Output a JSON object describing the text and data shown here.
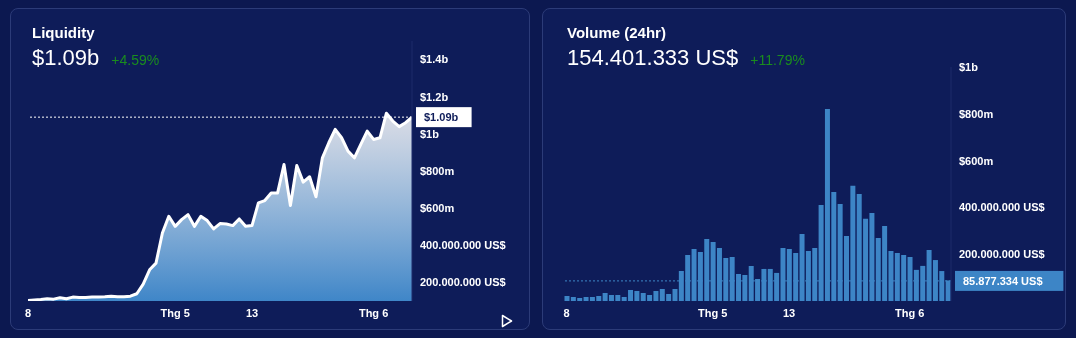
{
  "chart_data": [
    {
      "type": "area",
      "title": "Liquidity",
      "subtitle": "$1.09b",
      "annotations": [
        "+4.59%"
      ],
      "categories": [
        "8",
        null,
        null,
        null,
        null,
        null,
        null,
        null,
        null,
        null,
        null,
        null,
        null,
        null,
        null,
        null,
        null,
        null,
        null,
        null,
        null,
        null,
        null,
        "Thg 5",
        null,
        null,
        null,
        null,
        null,
        null,
        null,
        null,
        null,
        null,
        null,
        "13",
        null,
        null,
        null,
        null,
        null,
        null,
        null,
        null,
        null,
        null,
        null,
        null,
        null,
        null,
        null,
        null,
        null,
        null,
        "Thg 6",
        null,
        null,
        null,
        null,
        null,
        null
      ],
      "series": [
        {
          "color": "#ffffff",
          "values": [
            103000000,
            106000000,
            108000000,
            112000000,
            110000000,
            117000000,
            112000000,
            121000000,
            119000000,
            119000000,
            121000000,
            121000000,
            123000000,
            126000000,
            123000000,
            123000000,
            126000000,
            139000000,
            191000000,
            268000000,
            304000000,
            466000000,
            556000000,
            502000000,
            538000000,
            565000000,
            502000000,
            556000000,
            533000000,
            488000000,
            517000000,
            515000000,
            506000000,
            542000000,
            502000000,
            506000000,
            628000000,
            641000000,
            682000000,
            682000000,
            835000000,
            614000000,
            830000000,
            740000000,
            769000000,
            661000000,
            871000000,
            952000000,
            1024000000,
            979000000,
            907000000,
            871000000,
            943000000,
            1015000000,
            970000000,
            979000000,
            1111000000,
            1069000000,
            1039000000,
            1060000000,
            1090000000
          ]
        }
      ],
      "ylim": [
        100000000,
        1500000000
      ],
      "yticks": [
        {
          "value": 200000000,
          "label": "200.000.000 US$"
        },
        {
          "value": 400000000,
          "label": "400.000.000 US$"
        },
        {
          "value": 600000000,
          "label": "$600m"
        },
        {
          "value": 800000000,
          "label": "$800m"
        },
        {
          "value": 1000000000,
          "label": "$1b"
        },
        {
          "value": 1200000000,
          "label": "$1.2b"
        },
        {
          "value": 1400000000,
          "label": "$1.4b"
        }
      ],
      "ref_lines": [
        {
          "axis": "y",
          "value": 1090000000,
          "label": "$1.09b",
          "color": "#ffffff",
          "line_style": "dotted"
        }
      ]
    },
    {
      "type": "bar",
      "title": "Volume (24hr)",
      "subtitle": "154.401.333 US$",
      "annotations": [
        "+11.79%"
      ],
      "categories": [
        "8",
        null,
        null,
        null,
        null,
        null,
        null,
        null,
        null,
        null,
        null,
        null,
        null,
        null,
        null,
        null,
        null,
        null,
        null,
        null,
        null,
        null,
        null,
        "Thg 5",
        null,
        null,
        null,
        null,
        null,
        null,
        null,
        null,
        null,
        null,
        null,
        "13",
        null,
        null,
        null,
        null,
        null,
        null,
        null,
        null,
        null,
        null,
        null,
        null,
        null,
        null,
        null,
        null,
        null,
        null,
        "Thg 6",
        null,
        null,
        null,
        null,
        null,
        null
      ],
      "series": [
        {
          "color": "#3d85c6",
          "values": [
            21000000,
            17000000,
            13000000,
            17000000,
            17000000,
            21000000,
            34000000,
            26000000,
            26000000,
            17000000,
            47000000,
            43000000,
            34000000,
            26000000,
            43000000,
            51000000,
            30000000,
            51000000,
            128000000,
            197000000,
            222000000,
            209000000,
            265000000,
            252000000,
            227000000,
            184000000,
            188000000,
            115000000,
            111000000,
            150000000,
            94000000,
            137000000,
            137000000,
            120000000,
            227000000,
            222000000,
            205000000,
            286000000,
            214000000,
            227000000,
            410000000,
            821000000,
            466000000,
            415000000,
            278000000,
            492000000,
            457000000,
            351000000,
            376000000,
            269000000,
            321000000,
            214000000,
            205000000,
            197000000,
            188000000,
            133000000,
            150000000,
            218000000,
            175000000,
            128000000,
            88000000
          ]
        }
      ],
      "ylim": [
        0,
        1000000000
      ],
      "yticks": [
        {
          "value": 200000000,
          "label": "200.000.000 US$"
        },
        {
          "value": 400000000,
          "label": "400.000.000 US$"
        },
        {
          "value": 600000000,
          "label": "$600m"
        },
        {
          "value": 800000000,
          "label": "$800m"
        },
        {
          "value": 1000000000,
          "label": "$1b"
        }
      ],
      "ref_lines": [
        {
          "axis": "y",
          "value": 85877334,
          "label": "85.877.334 US$",
          "color": "#3d85c6",
          "line_style": "dotted"
        }
      ]
    }
  ]
}
